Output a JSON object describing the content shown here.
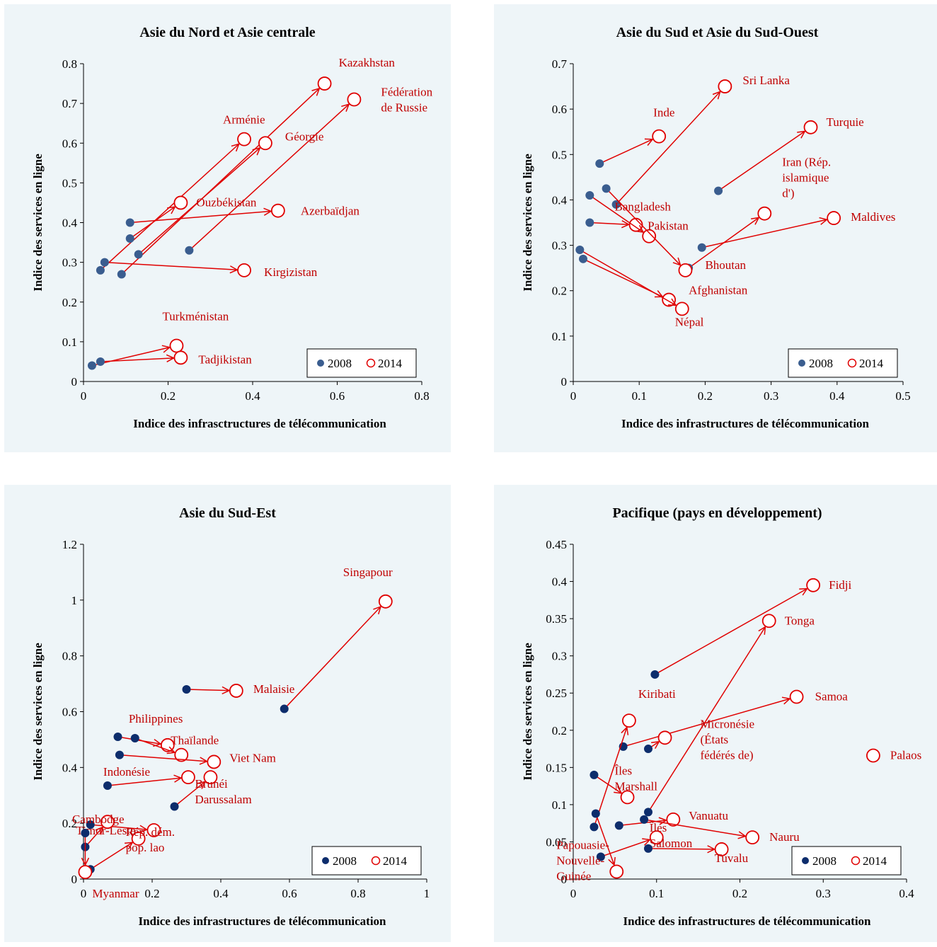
{
  "colors": {
    "arrow": "#e00000",
    "label": "#c00000",
    "dot_a": "#3a5d8f",
    "dot_b": "#0d2d6c",
    "panel_bg": "#eef5f8"
  },
  "legend": {
    "y2008": "2008",
    "y2014": "2014"
  },
  "chart_data": [
    {
      "type": "scatter",
      "title": "Asie du Nord et Asie centrale",
      "xlabel": "Indice des infrasctructures de télécommunication",
      "ylabel": "Indice des services en ligne",
      "xlim": [
        0,
        0.8
      ],
      "ylim": [
        0,
        0.8
      ],
      "xticks": [
        "0",
        "0.2",
        "0.4",
        "0.6",
        "0.8"
      ],
      "yticks": [
        "0",
        "0.1",
        "0.2",
        "0.3",
        "0.4",
        "0.5",
        "0.6",
        "0.7",
        "0.8"
      ],
      "dot_color": "#3a5d8f",
      "legend_position": "bottom-right",
      "points": [
        {
          "label": [
            "Kazakhstan"
          ],
          "x2008": 0.09,
          "y2008": 0.27,
          "x2014": 0.57,
          "y2014": 0.75
        },
        {
          "label": [
            "Fédération",
            "de Russie"
          ],
          "x2008": 0.25,
          "y2008": 0.33,
          "x2014": 0.64,
          "y2014": 0.71
        },
        {
          "label": [
            "Arménie"
          ],
          "x2008": 0.04,
          "y2008": 0.28,
          "x2014": 0.38,
          "y2014": 0.61
        },
        {
          "label": [
            "Géorgie"
          ],
          "x2008": 0.13,
          "y2008": 0.32,
          "x2014": 0.43,
          "y2014": 0.6
        },
        {
          "label": [
            "Ouzbékistan"
          ],
          "x2008": 0.11,
          "y2008": 0.36,
          "x2014": 0.23,
          "y2014": 0.45
        },
        {
          "label": [
            "Azerbaïdjan"
          ],
          "x2008": 0.11,
          "y2008": 0.4,
          "x2014": 0.46,
          "y2014": 0.43
        },
        {
          "label": [
            "Kirgizistan"
          ],
          "x2008": 0.05,
          "y2008": 0.3,
          "x2014": 0.38,
          "y2014": 0.28
        },
        {
          "label": [
            "Turkménistan"
          ],
          "x2008": 0.02,
          "y2008": 0.04,
          "x2014": 0.22,
          "y2014": 0.09
        },
        {
          "label": [
            "Tadjikistan"
          ],
          "x2008": 0.04,
          "y2008": 0.05,
          "x2014": 0.23,
          "y2014": 0.06
        }
      ]
    },
    {
      "type": "scatter",
      "title": "Asie du Sud et Asie du Sud-Ouest",
      "xlabel": "Indice des infrastructures de télécommunication",
      "ylabel": "Indice des services en ligne",
      "xlim": [
        0,
        0.5
      ],
      "ylim": [
        0,
        0.7
      ],
      "xticks": [
        "0",
        "0.1",
        "0.2",
        "0.3",
        "0.4",
        "0.5"
      ],
      "yticks": [
        "0",
        "0.1",
        "0.2",
        "0.3",
        "0.4",
        "0.5",
        "0.6",
        "0.7"
      ],
      "dot_color": "#3a5d8f",
      "legend_position": "bottom-right",
      "points": [
        {
          "label": [
            "Sri Lanka"
          ],
          "x2008": 0.065,
          "y2008": 0.39,
          "x2014": 0.23,
          "y2014": 0.65
        },
        {
          "label": [
            "Inde"
          ],
          "x2008": 0.04,
          "y2008": 0.48,
          "x2014": 0.13,
          "y2014": 0.54
        },
        {
          "label": [
            "Turquie"
          ],
          "x2008": 0.22,
          "y2008": 0.42,
          "x2014": 0.36,
          "y2014": 0.56
        },
        {
          "label": [
            "Iran (Rép.",
            "islamique",
            "d')"
          ],
          "x2008": 0.175,
          "y2008": 0.25,
          "x2014": 0.29,
          "y2014": 0.37
        },
        {
          "label": [
            "Maldives"
          ],
          "x2008": 0.195,
          "y2008": 0.295,
          "x2014": 0.395,
          "y2014": 0.36
        },
        {
          "label": [
            "Bangladesh"
          ],
          "x2008": 0.025,
          "y2008": 0.35,
          "x2014": 0.095,
          "y2014": 0.345
        },
        {
          "label": [
            "Pakistan"
          ],
          "x2008": 0.025,
          "y2008": 0.41,
          "x2014": 0.115,
          "y2014": 0.32
        },
        {
          "label": [
            "Bhoutan"
          ],
          "x2008": 0.05,
          "y2008": 0.425,
          "x2014": 0.17,
          "y2014": 0.245
        },
        {
          "label": [
            "Afghanistan"
          ],
          "x2008": 0.015,
          "y2008": 0.27,
          "x2014": 0.145,
          "y2014": 0.18
        },
        {
          "label": [
            "Népal"
          ],
          "x2008": 0.01,
          "y2008": 0.29,
          "x2014": 0.165,
          "y2014": 0.16
        }
      ]
    },
    {
      "type": "scatter",
      "title": "Asie du Sud-Est",
      "xlabel": "Indice des infrastructures de télécommunication",
      "ylabel": "Indice des services en ligne",
      "xlim": [
        0,
        1
      ],
      "ylim": [
        0,
        1.2
      ],
      "xticks": [
        "0",
        "0.2",
        "0.4",
        "0.6",
        "0.8",
        "1"
      ],
      "yticks": [
        "0",
        "0.2",
        "0.4",
        "0.6",
        "0.8",
        "1",
        "1.2"
      ],
      "dot_color": "#0d2d6c",
      "legend_position": "bottom-right",
      "points": [
        {
          "label": [
            "Singapour"
          ],
          "x2008": 0.585,
          "y2008": 0.61,
          "x2014": 0.88,
          "y2014": 0.995
        },
        {
          "label": [
            "Malaisie"
          ],
          "x2008": 0.3,
          "y2008": 0.68,
          "x2014": 0.445,
          "y2014": 0.675
        },
        {
          "label": [
            "Philippines"
          ],
          "x2008": 0.1,
          "y2008": 0.51,
          "x2014": 0.245,
          "y2014": 0.48
        },
        {
          "label": [
            "Thaïlande"
          ],
          "x2008": 0.15,
          "y2008": 0.505,
          "x2014": 0.285,
          "y2014": 0.445
        },
        {
          "label": [
            "Viet Nam"
          ],
          "x2008": 0.105,
          "y2008": 0.445,
          "x2014": 0.38,
          "y2014": 0.42
        },
        {
          "label": [
            "Indonésie"
          ],
          "x2008": 0.07,
          "y2008": 0.335,
          "x2014": 0.305,
          "y2014": 0.365
        },
        {
          "label": [
            "Brunéi",
            "Darussalam"
          ],
          "x2008": 0.265,
          "y2008": 0.26,
          "x2014": 0.37,
          "y2014": 0.365
        },
        {
          "label": [
            "Timor-Leste"
          ],
          "x2008": 0.02,
          "y2008": 0.195,
          "x2014": 0.205,
          "y2014": 0.175
        },
        {
          "label": [
            "Cambodge"
          ],
          "x2008": 0.005,
          "y2008": 0.115,
          "x2014": 0.07,
          "y2014": 0.205
        },
        {
          "label": [
            "Rép. dém.",
            "pop. lao"
          ],
          "x2008": 0.02,
          "y2008": 0.035,
          "x2014": 0.16,
          "y2014": 0.145
        },
        {
          "label": [
            "Myanmar"
          ],
          "x2008": 0.005,
          "y2008": 0.165,
          "x2014": 0.005,
          "y2014": 0.025
        }
      ]
    },
    {
      "type": "scatter",
      "title": "Pacifique (pays en développement)",
      "xlabel": "Indice des infrastructures de télécommunication",
      "ylabel": "Indice des services en ligne",
      "xlim": [
        0,
        0.4
      ],
      "ylim": [
        0,
        0.45
      ],
      "xticks": [
        "0",
        "0.1",
        "0.2",
        "0.3",
        "0.4"
      ],
      "yticks": [
        "0",
        "0.05",
        "0.1",
        "0.15",
        "0.2",
        "0.25",
        "0.3",
        "0.35",
        "0.4",
        "0.45"
      ],
      "dot_color": "#0d2d6c",
      "legend_position": "bottom-right",
      "points": [
        {
          "label": [
            "Fidji"
          ],
          "x2008": 0.098,
          "y2008": 0.275,
          "x2014": 0.288,
          "y2014": 0.395
        },
        {
          "label": [
            "Tonga"
          ],
          "x2008": 0.09,
          "y2008": 0.09,
          "x2014": 0.235,
          "y2014": 0.347
        },
        {
          "label": [
            "Samoa"
          ],
          "x2008": 0.06,
          "y2008": 0.178,
          "x2014": 0.268,
          "y2014": 0.245
        },
        {
          "label": [
            "Kiribati"
          ],
          "x2008": 0.025,
          "y2008": 0.07,
          "x2014": 0.067,
          "y2014": 0.213
        },
        {
          "label": [
            "Micronésie",
            "(États",
            "fédérés de)"
          ],
          "x2008": 0.09,
          "y2008": 0.175,
          "x2014": 0.11,
          "y2014": 0.19
        },
        {
          "label": [
            "Palaos"
          ],
          "x2008": null,
          "y2008": null,
          "x2014": 0.36,
          "y2014": 0.166
        },
        {
          "label": [
            "Îles",
            "Marshall"
          ],
          "x2008": 0.025,
          "y2008": 0.14,
          "x2014": 0.065,
          "y2014": 0.11
        },
        {
          "label": [
            "Vanuatu"
          ],
          "x2008": 0.055,
          "y2008": 0.072,
          "x2014": 0.12,
          "y2014": 0.08
        },
        {
          "label": [
            "Îles",
            "Salomon"
          ],
          "x2008": 0.033,
          "y2008": 0.03,
          "x2014": 0.1,
          "y2014": 0.056
        },
        {
          "label": [
            "Nauru"
          ],
          "x2008": 0.085,
          "y2008": 0.08,
          "x2014": 0.215,
          "y2014": 0.056
        },
        {
          "label": [
            "Tuvalu"
          ],
          "x2008": 0.09,
          "y2008": 0.041,
          "x2014": 0.178,
          "y2014": 0.04
        },
        {
          "label": [
            "Papouasie-",
            "Nouvelle-",
            "Guinée"
          ],
          "x2008": 0.027,
          "y2008": 0.088,
          "x2014": 0.052,
          "y2014": 0.01
        }
      ]
    }
  ]
}
